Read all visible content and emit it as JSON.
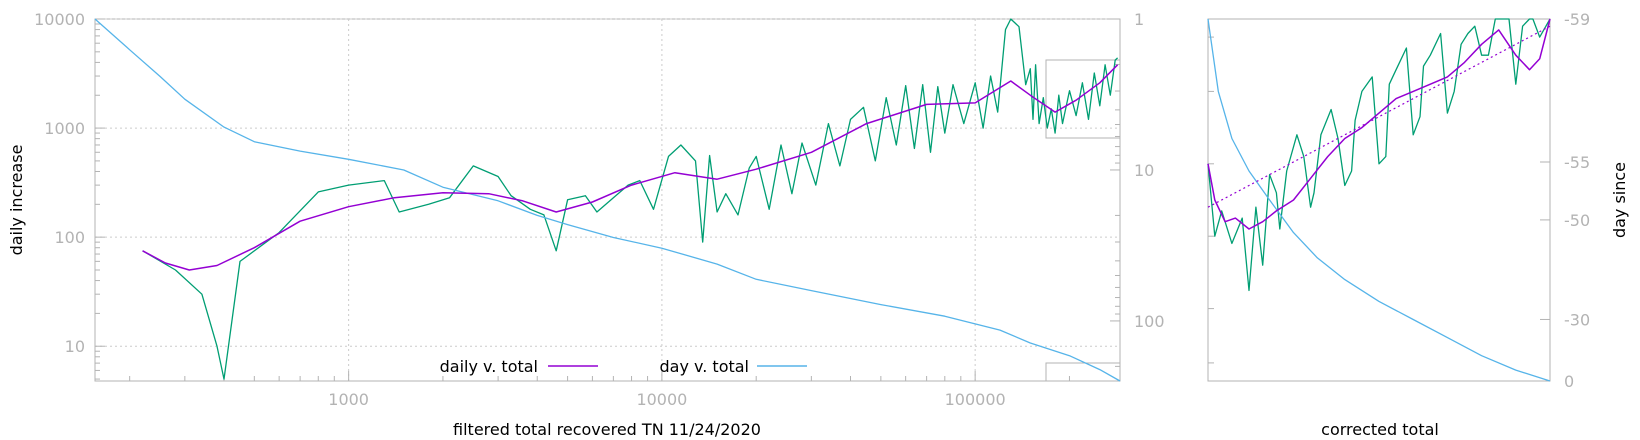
{
  "colors": {
    "daily_raw": "#009e73",
    "smooth": "#9400d3",
    "day": "#56b4e9",
    "fit": "#9400d3",
    "frame": "#b3b3b3",
    "grid": "#cccccc"
  },
  "chart_data": [
    {
      "type": "line",
      "xlabel": "filtered total recovered TN 11/24/2020",
      "ylabel": "daily increase",
      "y2label": "",
      "xscale": "log",
      "yscale": "log",
      "y2scale": "log-reversed",
      "xlim": [
        155,
        290000
      ],
      "ylim": [
        4.8,
        10000
      ],
      "y2lim": [
        1,
        250
      ],
      "x_ticks": [
        "1000",
        "10000",
        "100000"
      ],
      "y_ticks": [
        "10000",
        "1000",
        "100",
        "10"
      ],
      "y2_ticks": [
        "1",
        "10",
        "100"
      ],
      "legend": [
        "daily v. total",
        "day v. total"
      ],
      "legend_position": "bottom-center",
      "grid": true,
      "series": [
        {
          "name": "daily v. total",
          "axis": "left",
          "x": [
            220,
            260,
            310,
            380,
            500,
            700,
            1000,
            1400,
            2000,
            2800,
            3600,
            4600,
            6000,
            8000,
            11000,
            15000,
            20000,
            30000,
            45000,
            70000,
            100000,
            130000,
            150000,
            180000,
            210000,
            250000,
            285000
          ],
          "y": [
            75,
            58,
            50,
            55,
            80,
            140,
            190,
            230,
            255,
            250,
            215,
            170,
            210,
            300,
            390,
            340,
            420,
            600,
            1100,
            1650,
            1700,
            2700,
            2000,
            1400,
            1800,
            2600,
            3800
          ]
        },
        {
          "name": "",
          "axis": "left",
          "x": [
            220,
            280,
            340,
            380,
            400,
            450,
            600,
            800,
            1000,
            1300,
            1450,
            1800,
            2100,
            2500,
            3000,
            3300,
            3800,
            4200,
            4600,
            5000,
            5700,
            6200,
            7000,
            7800,
            8500,
            9400,
            10500,
            11500,
            12800,
            13500,
            14200,
            15000,
            16000,
            17500,
            19000,
            20000,
            22000,
            24000,
            26000,
            28000,
            31000,
            34000,
            37000,
            40000,
            44000,
            48000,
            52000,
            56000,
            60000,
            64000,
            68000,
            72000,
            76000,
            80000,
            85000,
            92000,
            100000,
            106000,
            112000,
            118000,
            125000,
            130000,
            138000,
            145000,
            150000,
            153000,
            156000,
            160000,
            165000,
            170000,
            175000,
            180000,
            185000,
            190000,
            200000,
            210000,
            220000,
            230000,
            240000,
            250000,
            260000,
            270000,
            280000,
            285000
          ],
          "y": [
            75,
            50,
            30,
            10,
            5,
            60,
            110,
            260,
            300,
            330,
            170,
            200,
            230,
            450,
            360,
            240,
            180,
            160,
            75,
            220,
            240,
            170,
            230,
            300,
            330,
            180,
            550,
            700,
            500,
            90,
            560,
            170,
            250,
            160,
            430,
            550,
            180,
            700,
            250,
            730,
            300,
            1100,
            450,
            1200,
            1550,
            500,
            1900,
            700,
            2450,
            650,
            2500,
            600,
            2400,
            900,
            2500,
            1100,
            2600,
            1000,
            3000,
            1400,
            8000,
            10000,
            8500,
            2500,
            3500,
            1200,
            3800,
            1100,
            1900,
            1000,
            1500,
            900,
            2000,
            1100,
            2200,
            1300,
            2600,
            1200,
            3200,
            1600,
            3800,
            2000,
            4200,
            4400
          ]
        },
        {
          "name": "day v. total",
          "axis": "right",
          "x": [
            155,
            200,
            250,
            300,
            400,
            500,
            700,
            1000,
            1500,
            2000,
            3000,
            4000,
            5000,
            7000,
            10000,
            15000,
            20000,
            30000,
            50000,
            80000,
            120000,
            150000,
            200000,
            250000,
            290000
          ],
          "y2": [
            1,
            1.6,
            2.4,
            3.4,
            5.2,
            6.5,
            7.5,
            8.5,
            10,
            13,
            16,
            20,
            23,
            28,
            33,
            42,
            53,
            63,
            78,
            93,
            115,
            140,
            170,
            210,
            250
          ]
        }
      ]
    },
    {
      "type": "line",
      "xlabel": "corrected total",
      "ylabel": "",
      "y2label": "day since",
      "y2_ticks": [
        "-59",
        "-55",
        "-50",
        "-30",
        "0"
      ],
      "grid": false,
      "series": [
        {
          "name": "",
          "x": [
            0,
            0.02,
            0.05,
            0.08,
            0.12,
            0.16,
            0.2,
            0.25,
            0.3,
            0.35,
            0.4,
            0.45,
            0.5,
            0.55,
            0.6,
            0.65,
            0.7,
            0.75,
            0.8,
            0.85,
            0.9,
            0.94,
            0.97,
            1.0
          ],
          "y": [
            0.6,
            0.5,
            0.44,
            0.45,
            0.42,
            0.44,
            0.47,
            0.5,
            0.56,
            0.62,
            0.67,
            0.7,
            0.74,
            0.78,
            0.8,
            0.82,
            0.84,
            0.88,
            0.93,
            0.97,
            0.9,
            0.86,
            0.89,
            1.0
          ]
        },
        {
          "name": "",
          "x": [
            0,
            0.02,
            0.04,
            0.07,
            0.1,
            0.12,
            0.14,
            0.16,
            0.18,
            0.2,
            0.21,
            0.23,
            0.26,
            0.28,
            0.3,
            0.31,
            0.33,
            0.36,
            0.38,
            0.4,
            0.42,
            0.43,
            0.45,
            0.48,
            0.5,
            0.52,
            0.53,
            0.55,
            0.58,
            0.6,
            0.62,
            0.63,
            0.65,
            0.68,
            0.7,
            0.72,
            0.74,
            0.76,
            0.78,
            0.8,
            0.82,
            0.84,
            0.86,
            0.88,
            0.9,
            0.92,
            0.94,
            0.95,
            0.97,
            1.0
          ],
          "y": [
            0.6,
            0.4,
            0.47,
            0.38,
            0.45,
            0.25,
            0.48,
            0.32,
            0.57,
            0.52,
            0.42,
            0.58,
            0.68,
            0.62,
            0.48,
            0.52,
            0.68,
            0.75,
            0.67,
            0.54,
            0.58,
            0.72,
            0.8,
            0.84,
            0.6,
            0.62,
            0.82,
            0.86,
            0.92,
            0.68,
            0.73,
            0.87,
            0.9,
            0.96,
            0.74,
            0.8,
            0.93,
            0.96,
            0.98,
            0.9,
            0.9,
            1.0,
            1.02,
            1.06,
            0.82,
            0.98,
            1.04,
            1.08,
            0.95,
            1.0
          ]
        },
        {
          "name": "",
          "x": [
            0,
            1
          ],
          "y": [
            0.48,
            0.98
          ]
        },
        {
          "name": "",
          "x": [
            0,
            0.03,
            0.07,
            0.12,
            0.18,
            0.25,
            0.32,
            0.4,
            0.5,
            0.6,
            0.7,
            0.8,
            0.9,
            1.0
          ],
          "y": [
            1.0,
            0.8,
            0.67,
            0.58,
            0.5,
            0.41,
            0.34,
            0.28,
            0.22,
            0.17,
            0.12,
            0.07,
            0.03,
            0.0
          ]
        }
      ]
    }
  ]
}
